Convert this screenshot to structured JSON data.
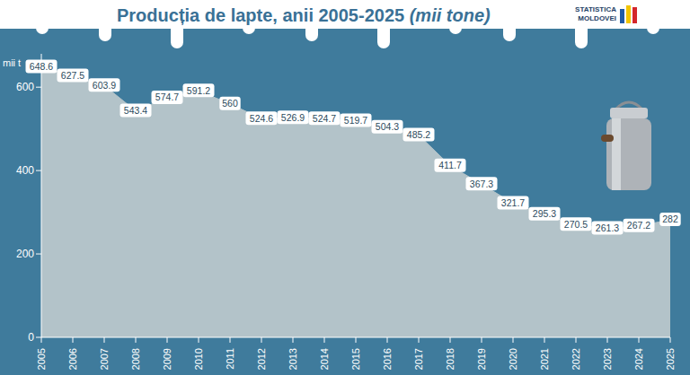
{
  "chart_data": {
    "type": "area",
    "title": "Producția de lapte, anii 2005-2025",
    "subtitle": "(mii tone)",
    "y_label": "mii t",
    "annotations": [
      "STATISTICA",
      "MOLDOVEI"
    ],
    "categories": [
      "2005",
      "2006",
      "2007",
      "2008",
      "2009",
      "2010",
      "2011",
      "2012",
      "2013",
      "2014",
      "2015",
      "2016",
      "2017",
      "2018",
      "2019",
      "2020",
      "2021",
      "2022",
      "2023",
      "2024",
      "2025"
    ],
    "values": [
      648.6,
      627.5,
      603.9,
      543.4,
      574.7,
      591.2,
      560,
      524.6,
      526.9,
      524.7,
      519.7,
      504.3,
      485.2,
      411.7,
      367.3,
      321.7,
      295.3,
      270.5,
      261.3,
      267.2,
      282
    ],
    "color": "#b3c3c9",
    "ylim": [
      0,
      680
    ],
    "yticks": [
      0,
      200,
      400,
      600
    ],
    "grid": false,
    "data_labels": true
  }
}
